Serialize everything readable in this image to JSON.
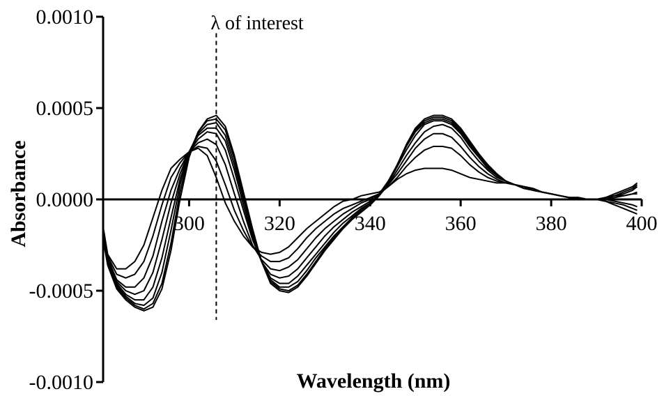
{
  "chart_data": {
    "type": "line",
    "title": "",
    "xlabel": "Wavelength (nm)",
    "ylabel": "Absorbance",
    "xlim": [
      281,
      400
    ],
    "ylim": [
      -0.001,
      0.001
    ],
    "x_ticks": [
      300,
      320,
      340,
      360,
      380,
      400
    ],
    "x_tick_labels": [
      "300",
      "320",
      "340",
      "360",
      "380",
      "400"
    ],
    "y_ticks": [
      0.001,
      0.0005,
      0.0,
      -0.0005,
      -0.001
    ],
    "y_tick_labels": [
      "0.0010",
      "0.0005",
      "0.0000",
      "-0.0005",
      "-0.0010"
    ],
    "grid": false,
    "legend": "none",
    "line_color": "#000000",
    "annotation": {
      "text": "λ of interest",
      "x": 306,
      "y_range": [
        -0.00066,
        0.00091
      ],
      "style": "dashed"
    },
    "x": [
      281,
      282,
      284,
      286,
      288,
      290,
      292,
      294,
      296,
      298,
      300,
      302,
      304,
      306,
      308,
      310,
      312,
      314,
      316,
      318,
      320,
      322,
      324,
      326,
      328,
      330,
      332,
      334,
      336,
      338,
      340,
      342,
      344,
      346,
      348,
      350,
      352,
      354,
      356,
      358,
      360,
      362,
      364,
      366,
      368,
      370,
      372,
      374,
      376,
      378,
      380,
      382,
      384,
      386,
      388,
      390,
      392,
      394,
      396,
      398,
      399
    ],
    "series": [
      {
        "values": [
          -0.00015,
          -0.0003,
          -0.00038,
          -0.00038,
          -0.00034,
          -0.00025,
          -0.0001,
          5e-05,
          0.00017,
          0.00022,
          0.00026,
          0.00028,
          0.00024,
          0.00012,
          -2e-05,
          -0.00012,
          -0.0002,
          -0.00026,
          -0.00029,
          -0.0003,
          -0.00029,
          -0.00026,
          -0.00021,
          -0.00016,
          -0.00012,
          -8e-05,
          -4e-05,
          -1e-05,
          0.0,
          2e-05,
          3e-05,
          4e-05,
          7e-05,
          0.00011,
          0.00014,
          0.00016,
          0.00017,
          0.00017,
          0.00017,
          0.00016,
          0.00014,
          0.00012,
          0.00011,
          0.0001,
          9e-05,
          9e-05,
          8e-05,
          7e-05,
          6e-05,
          4e-05,
          3e-05,
          2e-05,
          1e-05,
          1e-05,
          0.0,
          0.0,
          1e-05,
          2e-05,
          2e-05,
          3e-05,
          3e-05
        ]
      },
      {
        "values": [
          -0.00016,
          -0.00031,
          -0.00041,
          -0.00043,
          -0.00041,
          -0.00034,
          -0.0002,
          -3e-05,
          0.00012,
          0.0002,
          0.00026,
          0.00029,
          0.00028,
          0.00021,
          8e-05,
          -6e-05,
          -0.00017,
          -0.00026,
          -0.00031,
          -0.00034,
          -0.00034,
          -0.00032,
          -0.00027,
          -0.00021,
          -0.00016,
          -0.00012,
          -8e-05,
          -5e-05,
          -3e-05,
          -1e-05,
          1e-05,
          3e-05,
          7e-05,
          0.00012,
          0.00018,
          0.00023,
          0.00027,
          0.00029,
          0.00029,
          0.00028,
          0.00024,
          0.00019,
          0.00015,
          0.00012,
          0.0001,
          9e-05,
          8e-05,
          7e-05,
          6e-05,
          4e-05,
          3e-05,
          2e-05,
          1e-05,
          1e-05,
          0.0,
          0.0,
          0.0,
          1e-05,
          2e-05,
          3e-05,
          4e-05
        ]
      },
      {
        "values": [
          -0.00017,
          -0.00032,
          -0.00044,
          -0.00048,
          -0.00048,
          -0.00043,
          -0.00031,
          -0.00012,
          5e-05,
          0.00017,
          0.00026,
          0.00031,
          0.00033,
          0.0003,
          0.00019,
          3e-05,
          -0.00012,
          -0.00025,
          -0.00033,
          -0.00038,
          -0.00039,
          -0.00037,
          -0.00033,
          -0.00027,
          -0.00021,
          -0.00016,
          -0.00012,
          -8e-05,
          -5e-05,
          -2e-05,
          0.0,
          3e-05,
          8e-05,
          0.00014,
          0.00021,
          0.00028,
          0.00033,
          0.00036,
          0.00036,
          0.00034,
          0.00029,
          0.00023,
          0.00018,
          0.00014,
          0.00011,
          9e-05,
          8e-05,
          7e-05,
          5e-05,
          4e-05,
          3e-05,
          2e-05,
          1e-05,
          1e-05,
          0.0,
          0.0,
          0.0,
          -1e-05,
          -2e-05,
          -3e-05,
          -4e-05
        ]
      },
      {
        "values": [
          -0.00018,
          -0.00033,
          -0.00045,
          -0.0005,
          -0.00052,
          -0.0005,
          -0.0004,
          -0.00022,
          -2e-05,
          0.00014,
          0.00026,
          0.00033,
          0.00037,
          0.00036,
          0.00027,
          0.00011,
          -6e-05,
          -0.00022,
          -0.00034,
          -0.00041,
          -0.00043,
          -0.00042,
          -0.00038,
          -0.00032,
          -0.00026,
          -0.0002,
          -0.00015,
          -0.00011,
          -7e-05,
          -4e-05,
          -1e-05,
          2e-05,
          8e-05,
          0.00016,
          0.00024,
          0.00031,
          0.00037,
          0.0004,
          0.00041,
          0.00039,
          0.00034,
          0.00027,
          0.00021,
          0.00016,
          0.00012,
          0.0001,
          8e-05,
          7e-05,
          5e-05,
          4e-05,
          3e-05,
          2e-05,
          1e-05,
          1e-05,
          0.0,
          0.0,
          -1e-05,
          -2e-05,
          -3e-05,
          -5e-05,
          -6e-05
        ]
      },
      {
        "values": [
          -0.00019,
          -0.00034,
          -0.00046,
          -0.00052,
          -0.00055,
          -0.00055,
          -0.00048,
          -0.00032,
          -0.0001,
          0.00011,
          0.00026,
          0.00035,
          0.00039,
          0.00039,
          0.00032,
          0.00016,
          -3e-05,
          -0.0002,
          -0.00034,
          -0.00043,
          -0.00046,
          -0.00046,
          -0.00042,
          -0.00036,
          -0.0003,
          -0.00024,
          -0.00018,
          -0.00013,
          -9e-05,
          -5e-05,
          -2e-05,
          2e-05,
          9e-05,
          0.00018,
          0.00027,
          0.00035,
          0.00041,
          0.00043,
          0.00043,
          0.00041,
          0.00036,
          0.00029,
          0.00023,
          0.00017,
          0.00013,
          0.0001,
          8e-05,
          7e-05,
          5e-05,
          4e-05,
          3e-05,
          2e-05,
          1e-05,
          0.0,
          0.0,
          0.0,
          -1e-05,
          -3e-05,
          -5e-05,
          -7e-05,
          -8e-05
        ]
      },
      {
        "values": [
          -0.0002,
          -0.00034,
          -0.00047,
          -0.00053,
          -0.00057,
          -0.00058,
          -0.00054,
          -0.0004,
          -0.00017,
          8e-05,
          0.00026,
          0.00036,
          0.00041,
          0.00042,
          0.00035,
          0.00019,
          0.0,
          -0.00018,
          -0.00034,
          -0.00044,
          -0.00048,
          -0.00048,
          -0.00045,
          -0.00039,
          -0.00032,
          -0.00026,
          -0.0002,
          -0.00015,
          -0.0001,
          -6e-05,
          -2e-05,
          3e-05,
          0.0001,
          0.00019,
          0.00029,
          0.00037,
          0.00042,
          0.00044,
          0.00044,
          0.00042,
          0.00037,
          0.0003,
          0.00024,
          0.00018,
          0.00013,
          0.0001,
          8e-05,
          7e-05,
          5e-05,
          4e-05,
          3e-05,
          2e-05,
          1e-05,
          0.0,
          0.0,
          0.0,
          1e-05,
          2e-05,
          4e-05,
          6e-05,
          8e-05
        ]
      },
      {
        "values": [
          -0.00021,
          -0.00035,
          -0.00048,
          -0.00054,
          -0.00058,
          -0.0006,
          -0.00057,
          -0.00046,
          -0.00024,
          4e-05,
          0.00025,
          0.00037,
          0.00043,
          0.00044,
          0.00038,
          0.00022,
          2e-05,
          -0.00017,
          -0.00034,
          -0.00045,
          -0.00049,
          -0.0005,
          -0.00047,
          -0.00041,
          -0.00034,
          -0.00027,
          -0.00021,
          -0.00016,
          -0.00011,
          -7e-05,
          -3e-05,
          2e-05,
          9e-05,
          0.00019,
          0.00029,
          0.00038,
          0.00043,
          0.00045,
          0.00045,
          0.00043,
          0.00038,
          0.00031,
          0.00024,
          0.00018,
          0.00013,
          0.0001,
          8e-05,
          6e-05,
          5e-05,
          4e-05,
          3e-05,
          2e-05,
          1e-05,
          0.0,
          0.0,
          0.0,
          0.0,
          2e-05,
          3e-05,
          5e-05,
          7e-05
        ]
      },
      {
        "values": [
          -0.00022,
          -0.00036,
          -0.00049,
          -0.00055,
          -0.00059,
          -0.00061,
          -0.00059,
          -0.00049,
          -0.00028,
          0.0,
          0.00023,
          0.00037,
          0.00044,
          0.00046,
          0.0004,
          0.00024,
          4e-05,
          -0.00016,
          -0.00034,
          -0.00046,
          -0.0005,
          -0.00051,
          -0.00048,
          -0.00042,
          -0.00035,
          -0.00028,
          -0.00022,
          -0.00016,
          -0.00011,
          -7e-05,
          -3e-05,
          2e-05,
          9e-05,
          0.00019,
          0.0003,
          0.00039,
          0.00044,
          0.00046,
          0.00046,
          0.00044,
          0.00039,
          0.00032,
          0.00025,
          0.00019,
          0.00014,
          0.0001,
          8e-05,
          6e-05,
          5e-05,
          4e-05,
          3e-05,
          2e-05,
          1e-05,
          0.0,
          0.0,
          0.0,
          1e-05,
          3e-05,
          5e-05,
          7e-05,
          9e-05
        ]
      }
    ]
  }
}
